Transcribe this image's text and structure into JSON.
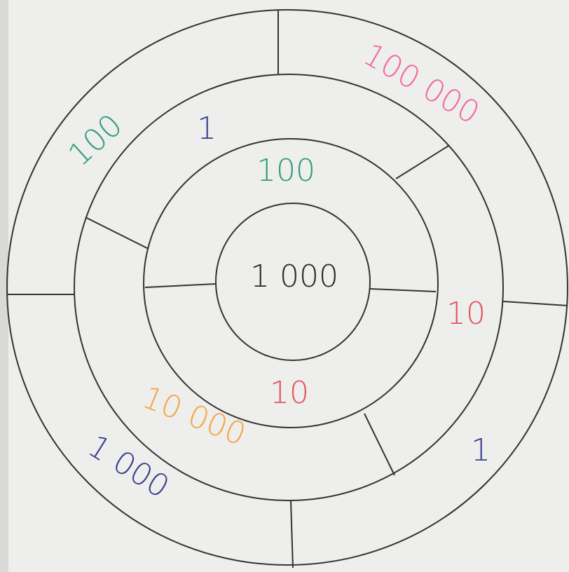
{
  "labels": [
    {
      "text": "100 000",
      "color": "#f06a9c"
    },
    {
      "text": "100",
      "color": "#2e9e7a"
    },
    {
      "text": "1",
      "color": "#3a3f8f"
    },
    {
      "text": "100",
      "color": "#2e9e7a"
    },
    {
      "text": "1 000",
      "color": "#2a2a2a"
    },
    {
      "text": "10",
      "color": "#e0565f"
    },
    {
      "text": "10",
      "color": "#e0565f"
    },
    {
      "text": "10 000",
      "color": "#f5a548"
    },
    {
      "text": "1",
      "color": "#3a3f8f"
    },
    {
      "text": "1 000",
      "color": "#3a3f8f"
    }
  ]
}
